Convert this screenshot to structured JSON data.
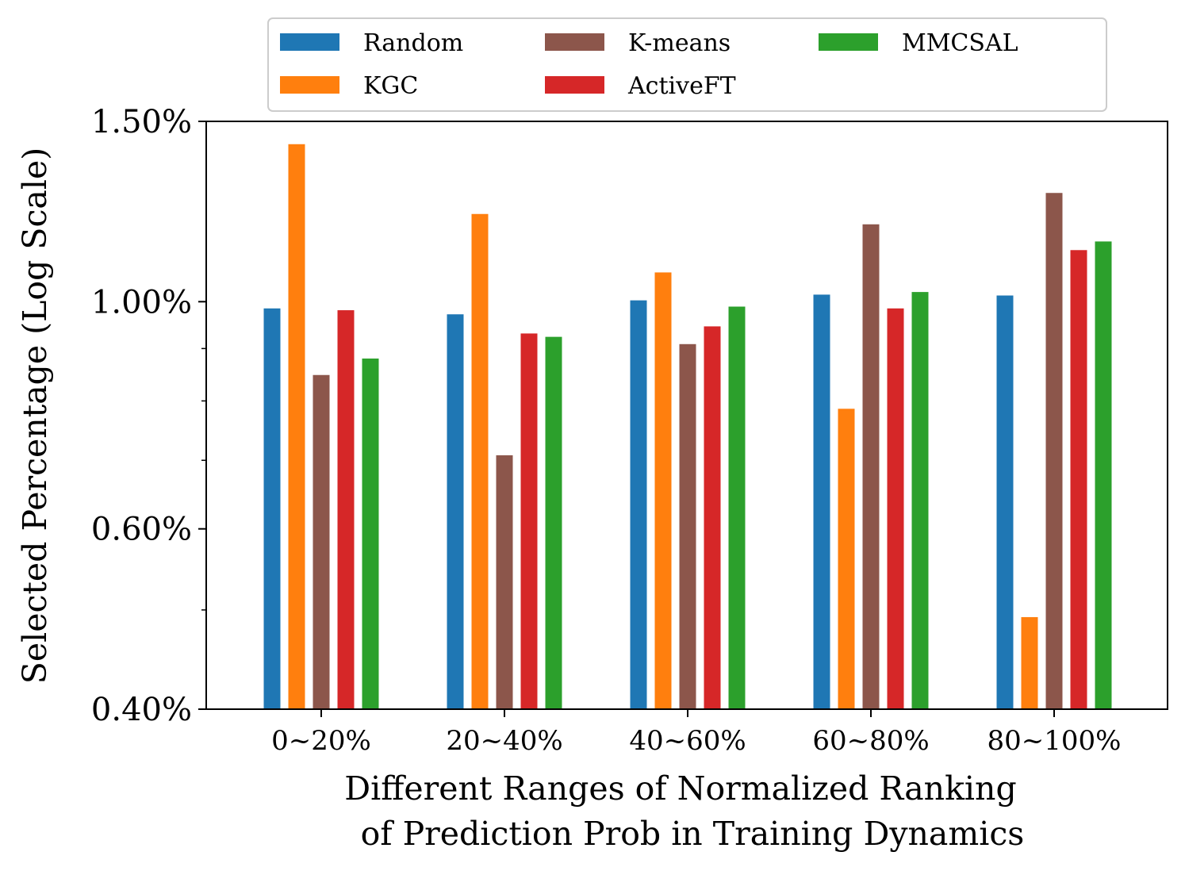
{
  "chart_data": {
    "type": "bar",
    "yscale": "log",
    "categories": [
      "0~20%",
      "20~40%",
      "40~60%",
      "60~80%",
      "80~100%"
    ],
    "series": [
      {
        "name": "Random",
        "color": "#1f77b4",
        "values": [
          0.985,
          0.972,
          1.003,
          1.016,
          1.014
        ]
      },
      {
        "name": "KGC",
        "color": "#ff7f0e",
        "values": [
          1.425,
          1.218,
          1.068,
          0.786,
          0.492
        ]
      },
      {
        "name": "K-means",
        "color": "#8c564b",
        "values": [
          0.848,
          0.708,
          0.909,
          1.19,
          1.277
        ]
      },
      {
        "name": "ActiveFT",
        "color": "#d62728",
        "values": [
          0.981,
          0.931,
          0.946,
          0.985,
          1.123
        ]
      },
      {
        "name": "MMCSAL",
        "color": "#2ca02c",
        "values": [
          0.88,
          0.924,
          0.989,
          1.022,
          1.145
        ]
      }
    ],
    "ylim": [
      0.4,
      1.5
    ],
    "yticks": [
      0.4,
      0.6,
      1.0,
      1.5
    ],
    "ytick_labels": [
      "0.40%",
      "0.60%",
      "1.00%",
      "1.50%"
    ],
    "minor_yticks": [
      0.5,
      0.7,
      0.8,
      0.9
    ],
    "ylabel": "Selected Percentage (Log Scale)",
    "xlabel_line1": "Different Ranges of Normalized Ranking",
    "xlabel_line2": "of Prediction Prob in Training Dynamics",
    "legend_position": "top-center-outside"
  }
}
